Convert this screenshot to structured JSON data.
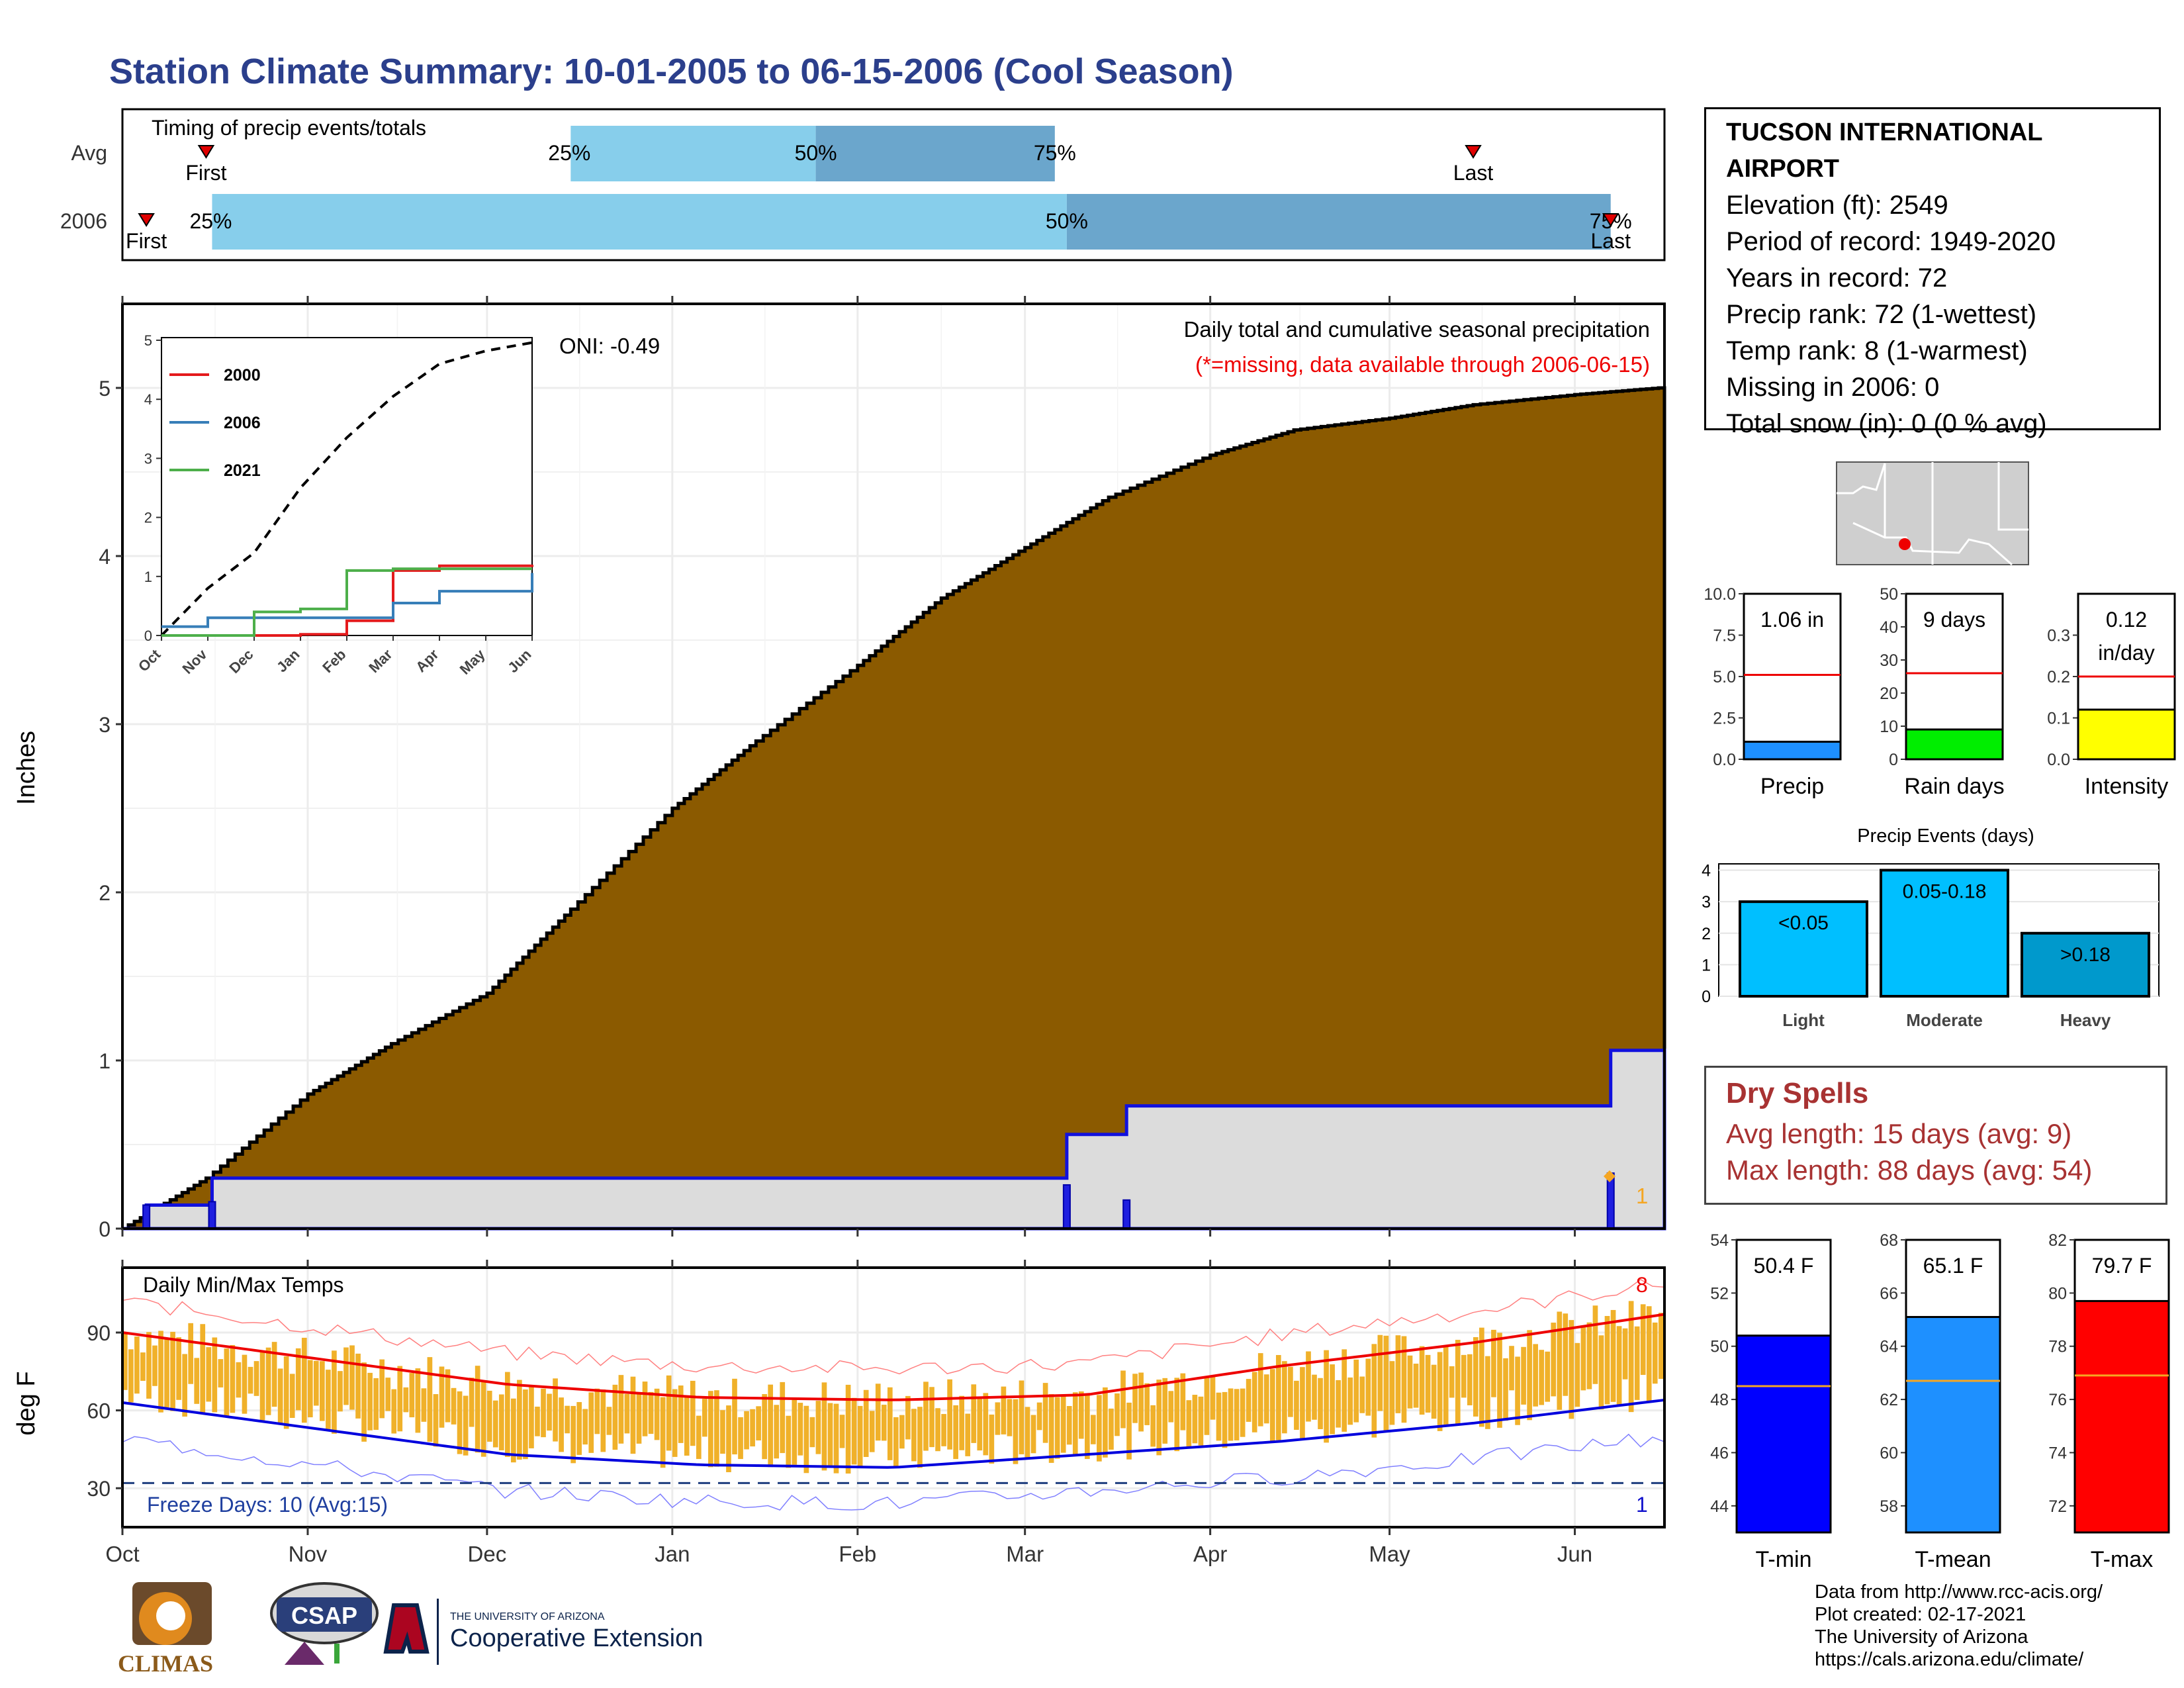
{
  "title": "Station Climate Summary: 10-01-2005 to 06-15-2006 (Cool Season)",
  "timing_panel": {
    "label": "Timing of precip events/totals",
    "rows": [
      {
        "name": "Avg",
        "first_date": "2005-10-15",
        "p25_date": "2005-12-15",
        "p50_date": "2006-01-25",
        "p75_date": "2006-03-06",
        "last_date": "2006-05-15",
        "first_label": "First",
        "last_label": "Last",
        "p25_label": "25%",
        "p50_label": "50%",
        "p75_label": "75%"
      },
      {
        "name": "2006",
        "first_date": "2005-10-05",
        "p25_date": "2005-10-16",
        "p50_date": "2006-03-08",
        "p75_date": "2006-06-07",
        "last_date": "2006-06-07",
        "first_label": "First",
        "last_label": "Last",
        "p25_label": "25%",
        "p50_label": "50%",
        "p75_label": "75%"
      }
    ]
  },
  "main_panel": {
    "ylabel": "Inches",
    "oni": "ONI: -0.49",
    "subtitle": "Daily total and cumulative seasonal precipitation",
    "note": "(*=missing, data available through 2006-06-15)",
    "count_label": "1",
    "x_ticks": [
      "Oct",
      "Nov",
      "Dec",
      "Jan",
      "Feb",
      "Mar",
      "Apr",
      "May",
      "Jun"
    ],
    "y_ticks": [
      "0",
      "1",
      "2",
      "3",
      "4",
      "5"
    ]
  },
  "inset": {
    "y_ticks": [
      "0",
      "1",
      "2",
      "3",
      "4",
      "5"
    ],
    "x_ticks": [
      "Oct",
      "Nov",
      "Dec",
      "Jan",
      "Feb",
      "Mar",
      "Apr",
      "May",
      "Jun"
    ],
    "legend": [
      {
        "name": "2000",
        "color": "#e41a1c"
      },
      {
        "name": "2006",
        "color": "#377eb8"
      },
      {
        "name": "2021",
        "color": "#4daf4a"
      }
    ]
  },
  "temp_panel": {
    "ylabel": "deg F",
    "label": "Daily Min/Max Temps",
    "freeze": "Freeze Days: 10 (Avg:15)",
    "y_ticks": [
      "30",
      "60",
      "90"
    ],
    "x_ticks": [
      "Oct",
      "Nov",
      "Dec",
      "Jan",
      "Feb",
      "Mar",
      "Apr",
      "May",
      "Jun"
    ],
    "count_top": "8",
    "count_bottom": "1"
  },
  "station": {
    "name": "TUCSON INTERNATIONAL AIRPORT",
    "lines": [
      "Elevation (ft): 2549",
      "Period of record: 1949-2020",
      "Years in record: 72",
      "Precip rank: 72 (1-wettest)",
      "Temp rank: 8 (1-warmest)",
      "Missing in 2006: 0",
      "Total snow (in): 0 (0 % avg)"
    ]
  },
  "summary_bars": [
    {
      "name": "Precip",
      "label": "1.06 in",
      "value": 1.06,
      "avg": 5.1,
      "ymax": 10,
      "ticks": [
        "0.0",
        "2.5",
        "5.0",
        "7.5",
        "10.0"
      ],
      "color": "#1e90ff"
    },
    {
      "name": "Rain days",
      "label": "9 days",
      "value": 9,
      "avg": 26,
      "ymax": 50,
      "ticks": [
        "0",
        "10",
        "20",
        "30",
        "40",
        "50"
      ],
      "color": "#00ee00"
    },
    {
      "name": "Intensity",
      "label": "0.12",
      "label2": "in/day",
      "value": 0.12,
      "avg": 0.2,
      "ymax": 0.4,
      "ticks": [
        "0.0",
        "0.1",
        "0.2",
        "0.3"
      ],
      "color": "#ffff00"
    }
  ],
  "events": {
    "title": "Precip Events (days)",
    "ticks": [
      "0",
      "1",
      "2",
      "3",
      "4"
    ],
    "bars": [
      {
        "name": "Light",
        "label": "<0.05",
        "value": 3,
        "color": "#00bfff"
      },
      {
        "name": "Moderate",
        "label": "0.05-0.18",
        "value": 4,
        "color": "#00bfff"
      },
      {
        "name": "Heavy",
        "label": ">0.18",
        "value": 2,
        "color": "#0099cc"
      }
    ]
  },
  "dry_spells": {
    "title": "Dry Spells",
    "avg": "Avg length: 15 days (avg: 9)",
    "max": "Max length: 88 days (avg: 54)"
  },
  "temp_bars": [
    {
      "name": "T-min",
      "label": "50.4 F",
      "value": 50.4,
      "avg": 48.5,
      "ymin": 43,
      "ymax": 54,
      "ticks": [
        "44",
        "46",
        "48",
        "50",
        "52",
        "54"
      ],
      "color": "#0000ff"
    },
    {
      "name": "T-mean",
      "label": "65.1 F",
      "value": 65.1,
      "avg": 62.7,
      "ymin": 57,
      "ymax": 68,
      "ticks": [
        "58",
        "60",
        "62",
        "64",
        "66",
        "68"
      ],
      "color": "#1e90ff"
    },
    {
      "name": "T-max",
      "label": "79.7 F",
      "value": 79.7,
      "avg": 76.9,
      "ymin": 71,
      "ymax": 82,
      "ticks": [
        "72",
        "74",
        "76",
        "78",
        "80",
        "82"
      ],
      "color": "#ff0000"
    }
  ],
  "credits": [
    "Data from http://www.rcc-acis.org/",
    "Plot created: 02-17-2021",
    "The University of Arizona",
    "https://cals.arizona.edu/climate/"
  ],
  "logos": {
    "climas": "CLIMAS",
    "csap": "CSAP",
    "ua_line1": "THE UNIVERSITY OF ARIZONA",
    "ua_line2": "Cooperative Extension"
  },
  "chart_data": [
    {
      "type": "area",
      "title": "Daily total and cumulative seasonal precipitation",
      "ylabel": "Inches",
      "ylim": [
        0,
        5.5
      ],
      "series": [
        {
          "name": "",
          "x": [
            "2005-10-01",
            "2005-10-15",
            "2005-11-01",
            "2005-11-15",
            "2005-12-01",
            "2005-12-15",
            "2006-01-01",
            "2006-01-15",
            "2006-02-01",
            "2006-02-15",
            "2006-03-01",
            "2006-03-15",
            "2006-04-01",
            "2006-04-15",
            "2006-05-01",
            "2006-05-15",
            "2006-06-01",
            "2006-06-15"
          ],
          "values": [
            0.0,
            0.3,
            0.8,
            1.1,
            1.4,
            1.9,
            2.5,
            2.9,
            3.35,
            3.75,
            4.05,
            4.35,
            4.6,
            4.75,
            4.82,
            4.9,
            4.96,
            5.0
          ]
        },
        {
          "name": "2006",
          "x": [
            "2005-10-01",
            "2005-10-05",
            "2005-10-16",
            "2006-03-08",
            "2006-03-18",
            "2006-06-07",
            "2006-06-15"
          ],
          "values": [
            0.0,
            0.14,
            0.3,
            0.56,
            0.73,
            1.06,
            1.06
          ]
        }
      ]
    },
    {
      "type": "line",
      "title": "",
      "ylabel": "",
      "ylim": [
        0,
        5
      ],
      "series": [
        {
          "name": "",
          "x": [
            "Oct",
            "Nov",
            "Dec",
            "Jan",
            "Feb",
            "Mar",
            "Apr",
            "May",
            "Jun"
          ],
          "values": [
            0.0,
            0.8,
            1.4,
            2.5,
            3.35,
            4.05,
            4.6,
            4.82,
            4.96
          ]
        },
        {
          "name": "2000",
          "x": [
            "Oct",
            "Nov",
            "Dec",
            "Jan",
            "Feb",
            "Mar",
            "Apr",
            "May",
            "Jun"
          ],
          "values": [
            0.0,
            0.0,
            0.0,
            0.02,
            0.25,
            1.1,
            1.18,
            1.18,
            1.2
          ]
        },
        {
          "name": "2006",
          "x": [
            "Oct",
            "Nov",
            "Dec",
            "Jan",
            "Feb",
            "Mar",
            "Apr",
            "May",
            "Jun"
          ],
          "values": [
            0.15,
            0.3,
            0.3,
            0.3,
            0.3,
            0.55,
            0.75,
            0.75,
            1.06
          ]
        },
        {
          "name": "2021",
          "x": [
            "Oct",
            "Nov",
            "Dec",
            "Jan",
            "Feb",
            "Mar",
            "Apr",
            "May",
            "Jun"
          ],
          "values": [
            0.0,
            0.0,
            0.4,
            0.45,
            1.1,
            1.13,
            1.13,
            1.13,
            1.13
          ]
        }
      ]
    },
    {
      "type": "line",
      "title": "Daily Min/Max Temps",
      "ylabel": "deg F",
      "ylim": [
        15,
        115
      ],
      "series": [
        {
          "name": "",
          "x": [
            "Oct",
            "Nov",
            "Dec",
            "Jan",
            "Feb",
            "Mar",
            "Apr",
            "May",
            "Jun"
          ],
          "values": [
            90,
            80,
            70,
            65,
            64,
            66,
            77,
            86,
            97
          ]
        },
        {
          "name": "",
          "x": [
            "Oct",
            "Nov",
            "Dec",
            "Jan",
            "Feb",
            "Mar",
            "Apr",
            "May",
            "Jun"
          ],
          "values": [
            63,
            53,
            43,
            39,
            38,
            43,
            48,
            55,
            64
          ]
        }
      ]
    },
    {
      "type": "bar",
      "title": "Precip Events (days)",
      "categories": [
        "Light",
        "Moderate",
        "Heavy"
      ],
      "values": [
        3,
        4,
        2
      ],
      "ylim": [
        0,
        4
      ]
    }
  ]
}
